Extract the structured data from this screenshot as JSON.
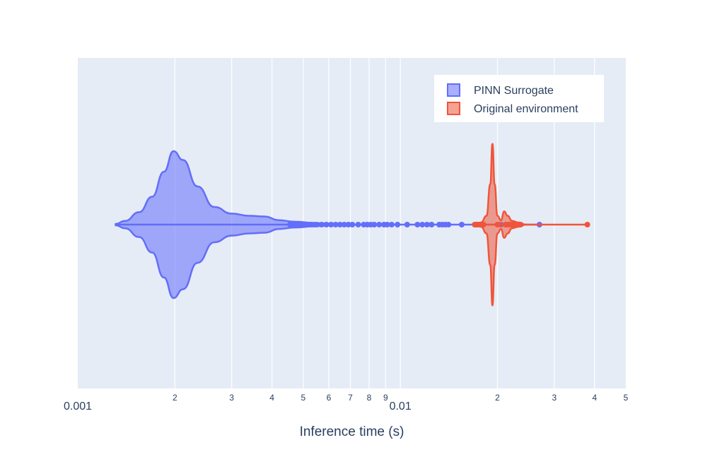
{
  "chart_data": {
    "type": "violin",
    "xlabel": "Inference time (s)",
    "x_scale": "log",
    "xlim": [
      0.001,
      0.05
    ],
    "major_ticks": [
      {
        "value": 0.001,
        "label": "0.001"
      },
      {
        "value": 0.01,
        "label": "0.01"
      }
    ],
    "minor_ticks": [
      {
        "value": 0.002,
        "label": "2"
      },
      {
        "value": 0.003,
        "label": "3"
      },
      {
        "value": 0.004,
        "label": "4"
      },
      {
        "value": 0.005,
        "label": "5"
      },
      {
        "value": 0.006,
        "label": "6"
      },
      {
        "value": 0.007,
        "label": "7"
      },
      {
        "value": 0.008,
        "label": "8"
      },
      {
        "value": 0.009,
        "label": "9"
      },
      {
        "value": 0.02,
        "label": "2"
      },
      {
        "value": 0.03,
        "label": "3"
      },
      {
        "value": 0.04,
        "label": "4"
      },
      {
        "value": 0.05,
        "label": "5"
      }
    ],
    "grid": true,
    "legend_position": "top-right",
    "series": [
      {
        "name": "PINN Surrogate",
        "color": "#636efa",
        "fill": "rgba(99,110,250,0.55)",
        "density": [
          {
            "x": 0.00131,
            "h": 0.01
          },
          {
            "x": 0.0014,
            "h": 0.05
          },
          {
            "x": 0.00155,
            "h": 0.17
          },
          {
            "x": 0.0017,
            "h": 0.38
          },
          {
            "x": 0.00185,
            "h": 0.72
          },
          {
            "x": 0.00198,
            "h": 1.0
          },
          {
            "x": 0.00212,
            "h": 0.88
          },
          {
            "x": 0.00235,
            "h": 0.52
          },
          {
            "x": 0.00265,
            "h": 0.24
          },
          {
            "x": 0.003,
            "h": 0.15
          },
          {
            "x": 0.0034,
            "h": 0.12
          },
          {
            "x": 0.0038,
            "h": 0.11
          },
          {
            "x": 0.0042,
            "h": 0.06
          },
          {
            "x": 0.0047,
            "h": 0.04
          },
          {
            "x": 0.0055,
            "h": 0.02
          },
          {
            "x": 0.0065,
            "h": 0.01
          },
          {
            "x": 0.007,
            "h": 0.0
          }
        ],
        "whisker": [
          0.00131,
          0.027
        ],
        "points": [
          0.00455,
          0.00465,
          0.00472,
          0.0048,
          0.00488,
          0.00495,
          0.00502,
          0.0051,
          0.0052,
          0.0053,
          0.0054,
          0.0055,
          0.0057,
          0.0059,
          0.0061,
          0.0063,
          0.0065,
          0.0067,
          0.0069,
          0.0071,
          0.0074,
          0.0077,
          0.0079,
          0.0081,
          0.0083,
          0.0086,
          0.0089,
          0.0091,
          0.0094,
          0.0098,
          0.0105,
          0.0113,
          0.0117,
          0.0121,
          0.0125,
          0.0132,
          0.0135,
          0.0138,
          0.0141,
          0.0155,
          0.0172,
          0.0205,
          0.027
        ]
      },
      {
        "name": "Original environment",
        "color": "#ef553b",
        "fill": "rgba(239,85,59,0.55)",
        "density": [
          {
            "x": 0.017,
            "h": 0.0
          },
          {
            "x": 0.0178,
            "h": 0.03
          },
          {
            "x": 0.0185,
            "h": 0.12
          },
          {
            "x": 0.019,
            "h": 0.55
          },
          {
            "x": 0.0193,
            "h": 1.1
          },
          {
            "x": 0.0196,
            "h": 0.55
          },
          {
            "x": 0.02,
            "h": 0.12
          },
          {
            "x": 0.0205,
            "h": 0.06
          },
          {
            "x": 0.021,
            "h": 0.18
          },
          {
            "x": 0.0215,
            "h": 0.12
          },
          {
            "x": 0.0222,
            "h": 0.05
          },
          {
            "x": 0.0232,
            "h": 0.03
          },
          {
            "x": 0.0245,
            "h": 0.0
          }
        ],
        "whisker": [
          0.017,
          0.038
        ],
        "points": [
          0.017,
          0.0172,
          0.0174,
          0.0176,
          0.0178,
          0.0181,
          0.02,
          0.0212,
          0.0215,
          0.0218,
          0.0221,
          0.0224,
          0.0227,
          0.0229,
          0.0231,
          0.0233,
          0.0236,
          0.038
        ]
      }
    ]
  }
}
